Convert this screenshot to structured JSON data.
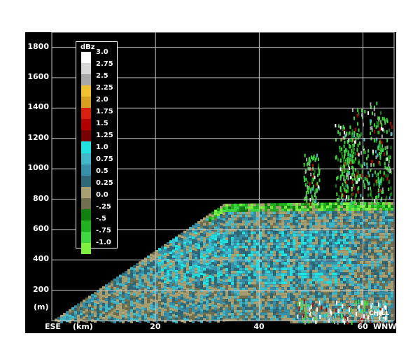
{
  "chart_data": {
    "type": "heatmap",
    "title": "",
    "xlabel": "(km)",
    "ylabel": "(m)",
    "x_left_label": "ESE",
    "x_right_label": "WNW",
    "xlim": [
      0,
      66
    ],
    "ylim": [
      0,
      1900
    ],
    "x_ticks": [
      20,
      40,
      60
    ],
    "y_ticks": [
      200,
      400,
      600,
      800,
      1000,
      1200,
      1400,
      1600,
      1800
    ],
    "grid": true,
    "watermark": "CHILL",
    "colorbar": {
      "unit": "dBz",
      "labels": [
        "3.0",
        "2.75",
        "2.5",
        "2.25",
        "2.0",
        "1.75",
        "1.5",
        "1.25",
        "1.0",
        "0.75",
        "0.5",
        "0.25",
        "0.0",
        "-.25",
        "-.5",
        "-.75",
        "-1.0"
      ],
      "colors": [
        "#ffffff",
        "#d8d8d8",
        "#a8a8a8",
        "#f0c030",
        "#d8a020",
        "#d82010",
        "#b00000",
        "#780000",
        "#20e0e0",
        "#40b8c8",
        "#3890a8",
        "#306878",
        "#a8a070",
        "#707050",
        "#108010",
        "#20b020",
        "#40d840",
        "#80f040"
      ]
    },
    "echo_top": [
      [
        0,
        0
      ],
      [
        33,
        770
      ],
      [
        60,
        780
      ],
      [
        66,
        780
      ]
    ],
    "convective_columns": [
      {
        "x": 50,
        "ymax": 1100
      },
      {
        "x": 56,
        "ymax": 1300
      },
      {
        "x": 57,
        "ymax": 1250
      },
      {
        "x": 59,
        "ymax": 1400
      },
      {
        "x": 62,
        "ymax": 1450
      },
      {
        "x": 64,
        "ymax": 1350
      }
    ]
  }
}
